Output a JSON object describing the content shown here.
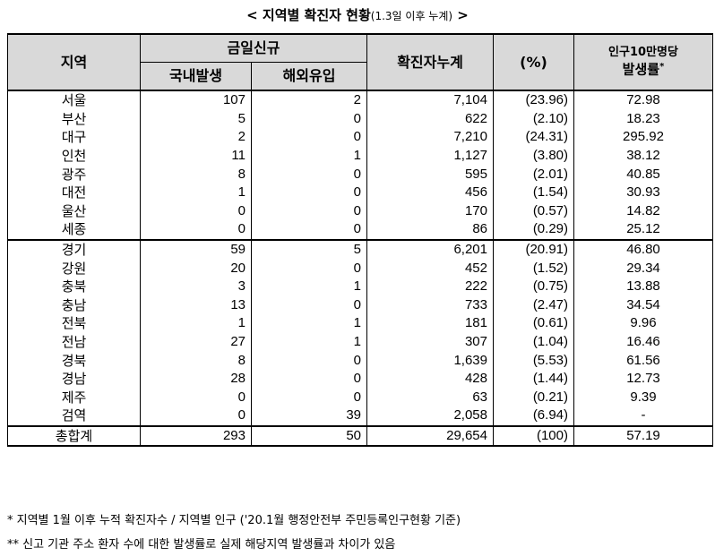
{
  "title": {
    "main": "< 지역별 확진자 현황",
    "sub": "(1.3일 이후 누계)",
    "end": " >"
  },
  "headers": {
    "region": "지역",
    "today_new": "금일신규",
    "domestic": "국내발생",
    "overseas": "해외유입",
    "cumulative": "확진자누계",
    "percent": "(%)",
    "rate_line1": "인구10만명당",
    "rate_line2": "발생률",
    "rate_mark": "*"
  },
  "rows": [
    {
      "region": "서울",
      "domestic": "107",
      "overseas": "2",
      "cumulative": "7,104",
      "percent": "(23.96)",
      "rate": "72.98"
    },
    {
      "region": "부산",
      "domestic": "5",
      "overseas": "0",
      "cumulative": "622",
      "percent": "(2.10)",
      "rate": "18.23"
    },
    {
      "region": "대구",
      "domestic": "2",
      "overseas": "0",
      "cumulative": "7,210",
      "percent": "(24.31)",
      "rate": "295.92"
    },
    {
      "region": "인천",
      "domestic": "11",
      "overseas": "1",
      "cumulative": "1,127",
      "percent": "(3.80)",
      "rate": "38.12"
    },
    {
      "region": "광주",
      "domestic": "8",
      "overseas": "0",
      "cumulative": "595",
      "percent": "(2.01)",
      "rate": "40.85"
    },
    {
      "region": "대전",
      "domestic": "1",
      "overseas": "0",
      "cumulative": "456",
      "percent": "(1.54)",
      "rate": "30.93"
    },
    {
      "region": "울산",
      "domestic": "0",
      "overseas": "0",
      "cumulative": "170",
      "percent": "(0.57)",
      "rate": "14.82"
    },
    {
      "region": "세종",
      "domestic": "0",
      "overseas": "0",
      "cumulative": "86",
      "percent": "(0.29)",
      "rate": "25.12"
    },
    {
      "region": "경기",
      "domestic": "59",
      "overseas": "5",
      "cumulative": "6,201",
      "percent": "(20.91)",
      "rate": "46.80"
    },
    {
      "region": "강원",
      "domestic": "20",
      "overseas": "0",
      "cumulative": "452",
      "percent": "(1.52)",
      "rate": "29.34"
    },
    {
      "region": "충북",
      "domestic": "3",
      "overseas": "1",
      "cumulative": "222",
      "percent": "(0.75)",
      "rate": "13.88"
    },
    {
      "region": "충남",
      "domestic": "13",
      "overseas": "0",
      "cumulative": "733",
      "percent": "(2.47)",
      "rate": "34.54"
    },
    {
      "region": "전북",
      "domestic": "1",
      "overseas": "1",
      "cumulative": "181",
      "percent": "(0.61)",
      "rate": "9.96"
    },
    {
      "region": "전남",
      "domestic": "27",
      "overseas": "1",
      "cumulative": "307",
      "percent": "(1.04)",
      "rate": "16.46"
    },
    {
      "region": "경북",
      "domestic": "8",
      "overseas": "0",
      "cumulative": "1,639",
      "percent": "(5.53)",
      "rate": "61.56"
    },
    {
      "region": "경남",
      "domestic": "28",
      "overseas": "0",
      "cumulative": "428",
      "percent": "(1.44)",
      "rate": "12.73"
    },
    {
      "region": "제주",
      "domestic": "0",
      "overseas": "0",
      "cumulative": "63",
      "percent": "(0.21)",
      "rate": "9.39"
    },
    {
      "region": "검역",
      "domestic": "0",
      "overseas": "39",
      "cumulative": "2,058",
      "percent": "(6.94)",
      "rate": "-"
    },
    {
      "region": "총합계",
      "domestic": "293",
      "overseas": "50",
      "cumulative": "29,654",
      "percent": "(100)",
      "rate": "57.19"
    }
  ],
  "notes": [
    "* 지역별 1월 이후 누적 확진자수 / 지역별 인구 ('20.1월 행정안전부 주민등록인구현황 기준)",
    "** 신고 기관 주소 환자 수에 대한 발생률로 실제 해당지역 발생률과 차이가 있음"
  ],
  "colors": {
    "header_bg": "#d9d9d9",
    "border": "#000000"
  }
}
